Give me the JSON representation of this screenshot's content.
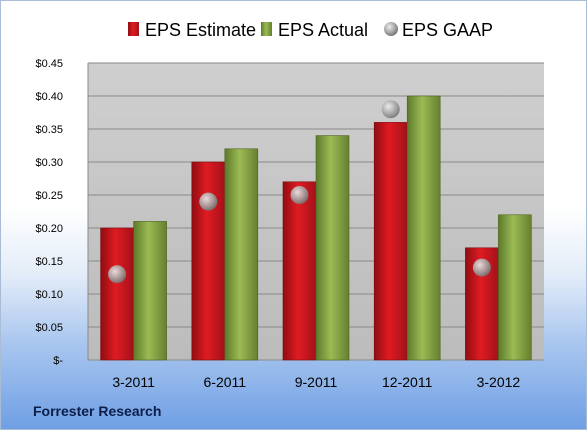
{
  "source_label": "Forrester Research",
  "chart_data": {
    "type": "bar",
    "categories": [
      "3-2011",
      "6-2011",
      "9-2011",
      "12-2011",
      "3-2012"
    ],
    "series": [
      {
        "name": "EPS Estimate",
        "kind": "bar",
        "color": "#c0141c",
        "values": [
          0.2,
          0.3,
          0.27,
          0.36,
          0.17
        ]
      },
      {
        "name": "EPS Actual",
        "kind": "bar",
        "color": "#7c9a3a",
        "values": [
          0.21,
          0.32,
          0.34,
          0.4,
          0.22
        ]
      },
      {
        "name": "EPS GAAP",
        "kind": "marker",
        "color": "#a8a8a8",
        "values": [
          0.13,
          0.24,
          0.25,
          0.38,
          0.14
        ]
      }
    ],
    "ylim": [
      0,
      0.45
    ],
    "yticks": [
      0,
      0.05,
      0.1,
      0.15,
      0.2,
      0.25,
      0.3,
      0.35,
      0.4,
      0.45
    ],
    "ytick_labels": [
      "$-",
      "$0.05",
      "$0.10",
      "$0.15",
      "$0.20",
      "$0.25",
      "$0.30",
      "$0.35",
      "$0.40",
      "$0.45"
    ],
    "grid": true,
    "legend_position": "top",
    "title": "",
    "xlabel": "",
    "ylabel": ""
  }
}
